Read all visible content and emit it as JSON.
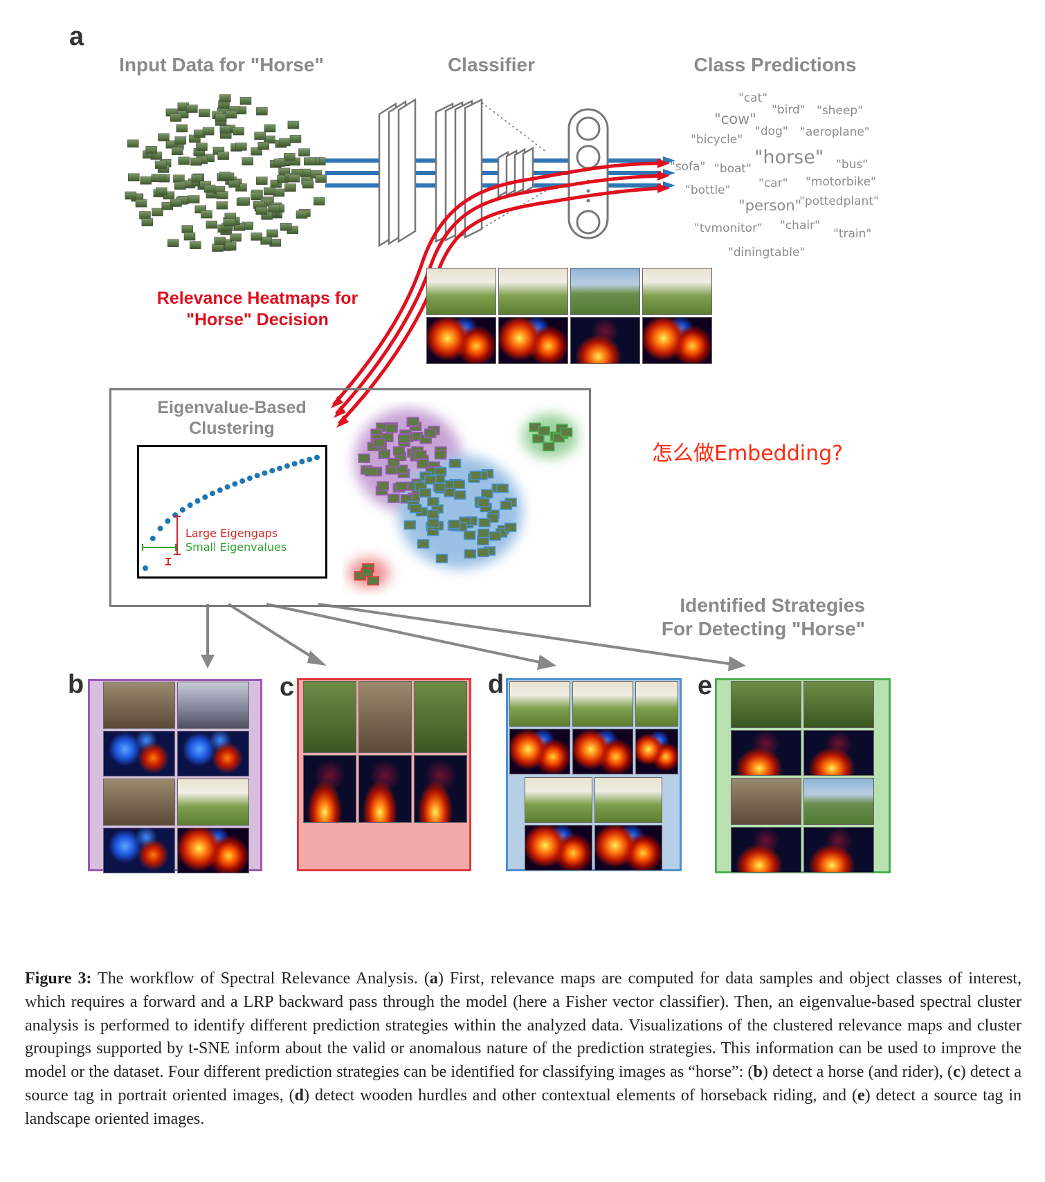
{
  "panel_a": {
    "letter": "a",
    "input_title": "Input Data for \"Horse\"",
    "classifier_title": "Classifier",
    "predictions_title": "Class Predictions",
    "predictions": [
      "\"cat\"",
      "\"bird\"",
      "\"sheep\"",
      "\"cow\"",
      "\"dog\"",
      "\"aeroplane\"",
      "\"bicycle\"",
      "\"horse\"",
      "\"sofa\"",
      "\"boat\"",
      "\"bus\"",
      "\"car\"",
      "\"motorbike\"",
      "\"bottle\"",
      "\"person\"",
      "\"pottedplant\"",
      "\"tvmonitor\"",
      "\"chair\"",
      "\"train\"",
      "\"diningtable\""
    ],
    "heatmap_label_line1": "Relevance Heatmaps for",
    "heatmap_label_line2": "\"Horse\" Decision"
  },
  "clustering": {
    "title_line1": "Eigenvalue-Based",
    "title_line2": "Clustering",
    "legend_large": "Large Eigengaps",
    "legend_small": "Small Eigenvalues"
  },
  "annotation": "怎么做Embedding?",
  "strategies_title_line1": "Identified Strategies",
  "strategies_title_line2": "For Detecting \"Horse\"",
  "panels": {
    "b": "b",
    "c": "c",
    "d": "d",
    "e": "e"
  },
  "caption": {
    "label": "Figure 3:",
    "panel_a_ref": "a",
    "panel_b_ref": "b",
    "panel_c_ref": "c",
    "panel_d_ref": "d",
    "panel_e_ref": "e",
    "part1": "The workflow of Spectral Relevance Analysis. (",
    "part2": ") First, relevance maps are computed for data samples and object classes of interest, which requires a forward and a LRP backward pass through the model (here a Fisher vector classifier). Then, an eigenvalue-based spectral cluster analysis is performed to identify different prediction strategies within the analyzed data. Visualizations of the clustered relevance maps and cluster groupings supported by t-SNE inform about the valid or anomalous nature of the prediction strategies. This information can be used to improve the model or the dataset. Four different prediction strategies can be identified for classifying images as “horse”: (",
    "part3": ") detect a horse (and rider), (",
    "part4": ") detect a source tag in portrait oriented images, (",
    "part5": ") detect wooden hurdles and other contextual elements of horseback riding, and (",
    "part6": ") detect a source tag in landscape oriented images."
  },
  "colors": {
    "title_gray": "#8a8a8a",
    "relevance_red": "#e0101e",
    "flow_blue": "#2e75b6",
    "annotation_red": "#ff2a10",
    "cluster_purple": "#9b59b6",
    "cluster_red": "#e03a3a",
    "cluster_blue": "#4a90d0",
    "cluster_green": "#4caf50",
    "eigen_dot_blue": "#1f77b4",
    "eigengap_red": "#d62728",
    "eigenvalue_green": "#2ca02c"
  }
}
